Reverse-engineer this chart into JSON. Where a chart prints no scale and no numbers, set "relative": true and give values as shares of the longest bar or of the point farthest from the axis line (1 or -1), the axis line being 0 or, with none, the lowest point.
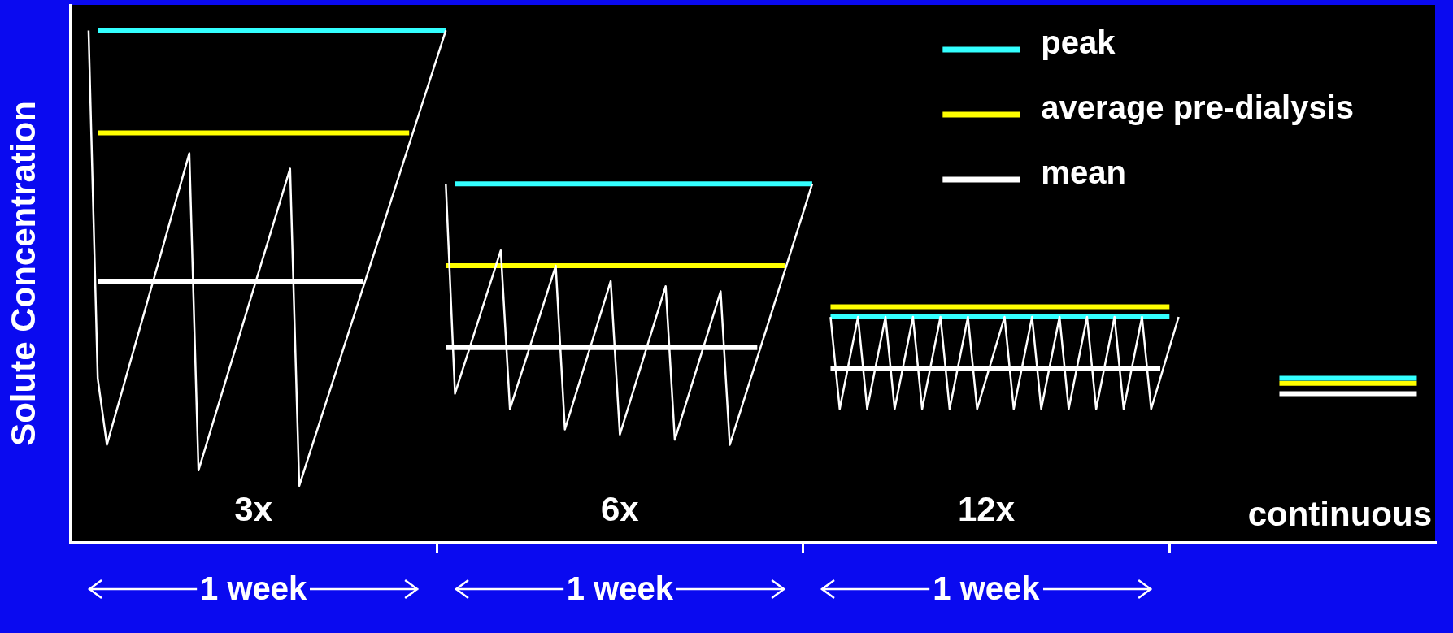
{
  "chart_data": {
    "type": "line",
    "relative": true,
    "ylabel": "Solute Concentration",
    "categories": [
      null,
      null,
      null,
      null,
      null,
      null,
      null,
      null,
      null,
      null,
      null,
      null,
      null,
      null,
      null,
      null,
      null,
      null,
      null,
      null,
      "1 week",
      null,
      null,
      null,
      null,
      null,
      null,
      null,
      null,
      null,
      null,
      null,
      null,
      null,
      null,
      null,
      null,
      null,
      null,
      null,
      null,
      null,
      null,
      null,
      null,
      null,
      null,
      null,
      null,
      null,
      null,
      null,
      null,
      null,
      null,
      null,
      null,
      null,
      null,
      null,
      "1 week",
      null,
      null,
      null,
      null,
      null,
      null,
      null,
      null,
      null,
      null,
      null,
      null,
      null,
      null,
      null,
      null,
      null,
      null,
      null,
      null,
      null,
      null,
      null,
      null,
      null,
      null,
      null,
      null,
      null,
      null,
      null,
      null,
      null,
      null,
      null,
      null,
      null,
      null,
      null,
      "1 week",
      null,
      null,
      null,
      null,
      null,
      null,
      null,
      null,
      null,
      null,
      null,
      null,
      null,
      null,
      null,
      null,
      null,
      null,
      null,
      null,
      null,
      null,
      null,
      null,
      null,
      null,
      null,
      null,
      null,
      null,
      null,
      null,
      null,
      null,
      null,
      null,
      null,
      null,
      null,
      null,
      null,
      null,
      null,
      null,
      null,
      null,
      null,
      null,
      null
    ],
    "annotations": [
      "3x",
      "6x",
      "12x",
      "continuous"
    ],
    "series": [
      {
        "color": "#ffffff",
        "values": [
          null,
          null,
          1.0,
          0.32,
          0.19,
          null,
          null,
          null,
          null,
          null,
          null,
          null,
          null,
          0.76,
          0.14,
          null,
          null,
          null,
          null,
          null,
          null,
          null,
          null,
          null,
          0.73,
          0.11,
          null,
          null,
          null,
          null,
          null,
          null,
          null,
          null,
          null,
          null,
          null,
          null,
          null,
          null,
          null,
          1.0,
          null,
          null,
          null,
          null,
          null,
          null,
          null,
          null,
          null,
          null,
          null,
          null,
          null,
          null,
          null,
          null,
          null,
          null,
          null,
          null,
          null,
          null,
          null,
          null,
          null,
          null,
          null,
          null,
          null,
          null,
          null,
          null,
          null,
          null,
          null,
          null,
          null,
          null,
          null,
          null,
          null,
          null,
          null,
          null,
          null,
          null,
          null,
          null,
          null,
          null,
          null,
          null,
          null,
          null,
          null,
          null,
          null,
          null,
          null,
          null,
          null,
          null,
          null,
          null,
          null,
          null,
          null,
          null,
          null,
          null,
          null,
          null,
          null,
          null,
          null,
          null,
          null,
          null,
          null,
          null,
          null,
          null,
          null,
          null,
          null,
          null,
          null,
          null,
          null,
          null,
          null,
          null,
          null,
          null,
          null,
          null,
          null,
          null,
          null,
          null,
          null,
          null,
          null,
          null,
          null,
          null,
          null,
          null
        ]
      },
      {
        "color": "#ffffff",
        "values": [
          null,
          null,
          null,
          null,
          null,
          null,
          null,
          null,
          null,
          null,
          null,
          null,
          null,
          null,
          null,
          null,
          null,
          null,
          null,
          null,
          null,
          null,
          null,
          null,
          null,
          null,
          null,
          null,
          null,
          null,
          null,
          null,
          null,
          null,
          null,
          null,
          null,
          null,
          null,
          null,
          null,
          0.7,
          0.29,
          null,
          null,
          null,
          null,
          0.57,
          0.26,
          null,
          null,
          null,
          null,
          0.54,
          0.22,
          null,
          null,
          null,
          null,
          0.51,
          0.21,
          null,
          null,
          null,
          null,
          0.5,
          0.2,
          null,
          null,
          null,
          null,
          0.49,
          0.19,
          null,
          null,
          null,
          null,
          null,
          null,
          null,
          null,
          0.7,
          null,
          null,
          null,
          null,
          null,
          null,
          null,
          null,
          null,
          null,
          null,
          null,
          null,
          null,
          null,
          null,
          null,
          null,
          null,
          null,
          null,
          null,
          null,
          null,
          null,
          null,
          null,
          null,
          null,
          null,
          null,
          null,
          null,
          null,
          null,
          null,
          null,
          null,
          null,
          null,
          null,
          null,
          null,
          null,
          null,
          null,
          null,
          null,
          null,
          null,
          null,
          null,
          null,
          null,
          null,
          null,
          null,
          null,
          null,
          null,
          null,
          null,
          null,
          null,
          null,
          null,
          null,
          null
        ]
      },
      {
        "color": "#ffffff",
        "values": [
          null,
          null,
          null,
          null,
          null,
          null,
          null,
          null,
          null,
          null,
          null,
          null,
          null,
          null,
          null,
          null,
          null,
          null,
          null,
          null,
          null,
          null,
          null,
          null,
          null,
          null,
          null,
          null,
          null,
          null,
          null,
          null,
          null,
          null,
          null,
          null,
          null,
          null,
          null,
          null,
          null,
          null,
          null,
          null,
          null,
          null,
          null,
          null,
          null,
          null,
          null,
          null,
          null,
          null,
          null,
          null,
          null,
          null,
          null,
          null,
          null,
          null,
          null,
          null,
          null,
          null,
          null,
          null,
          null,
          null,
          null,
          null,
          null,
          null,
          null,
          null,
          null,
          null,
          null,
          null,
          null,
          null,
          null,
          0.44,
          0.26,
          null,
          0.44,
          0.26,
          null,
          0.44,
          0.26,
          null,
          0.44,
          0.26,
          null,
          0.44,
          0.26,
          null,
          0.44,
          0.26,
          null,
          null,
          0.44,
          0.26,
          null,
          0.44,
          0.26,
          null,
          0.44,
          0.26,
          null,
          0.44,
          0.26,
          null,
          0.44,
          0.26,
          null,
          0.44,
          0.26,
          null,
          null,
          0.44,
          null,
          null,
          null,
          null,
          null,
          null,
          null,
          null,
          null,
          null,
          null,
          null,
          null,
          null,
          null,
          null,
          null,
          null,
          null,
          null,
          null,
          null,
          null,
          null,
          null,
          null,
          null,
          null
        ]
      },
      {
        "name": "peak",
        "color": "#33ffff",
        "values": [
          null,
          null,
          null,
          1.0,
          null,
          null,
          null,
          null,
          null,
          null,
          null,
          null,
          null,
          null,
          null,
          null,
          null,
          null,
          null,
          null,
          null,
          null,
          null,
          null,
          null,
          null,
          null,
          null,
          null,
          null,
          null,
          null,
          null,
          null,
          null,
          null,
          null,
          null,
          null,
          null,
          null,
          1.0,
          null,
          null,
          null,
          null,
          null,
          null,
          null,
          null,
          null,
          null,
          null,
          null,
          null,
          null,
          null,
          null,
          null,
          null,
          null,
          null,
          null,
          null,
          null,
          null,
          null,
          null,
          null,
          null,
          null,
          null,
          null,
          null,
          null,
          null,
          null,
          null,
          null,
          null,
          null,
          null,
          null,
          null,
          null,
          null,
          null,
          null,
          null,
          null,
          null,
          null,
          null,
          null,
          null,
          null,
          null,
          null,
          null,
          null,
          null,
          null,
          null,
          null,
          null,
          null,
          null,
          null,
          null,
          null,
          null,
          null,
          null,
          null,
          null,
          null,
          null,
          null,
          null,
          null,
          null,
          null,
          null,
          null,
          null,
          null,
          null,
          null,
          null,
          null,
          null,
          null,
          null,
          null,
          null,
          null,
          null,
          null,
          null,
          null,
          null,
          null,
          null,
          null,
          null,
          null,
          null,
          null,
          null,
          null
        ]
      },
      {
        "color": "#33ffff",
        "values": [
          null,
          null,
          null,
          null,
          null,
          null,
          null,
          null,
          null,
          null,
          null,
          null,
          null,
          null,
          null,
          null,
          null,
          null,
          null,
          null,
          null,
          null,
          null,
          null,
          null,
          null,
          null,
          null,
          null,
          null,
          null,
          null,
          null,
          null,
          null,
          null,
          null,
          null,
          null,
          null,
          null,
          null,
          0.7,
          null,
          null,
          null,
          null,
          null,
          null,
          null,
          null,
          null,
          null,
          null,
          null,
          null,
          null,
          null,
          null,
          null,
          null,
          null,
          null,
          null,
          null,
          null,
          null,
          null,
          null,
          null,
          null,
          null,
          null,
          null,
          null,
          null,
          null,
          null,
          null,
          null,
          null,
          0.7,
          null,
          null,
          null,
          null,
          null,
          null,
          null,
          null,
          null,
          null,
          null,
          null,
          null,
          null,
          null,
          null,
          null,
          null,
          null,
          null,
          null,
          null,
          null,
          null,
          null,
          null,
          null,
          null,
          null,
          null,
          null,
          null,
          null,
          null,
          null,
          null,
          null,
          null,
          null,
          null,
          null,
          null,
          null,
          null,
          null,
          null,
          null,
          null,
          null,
          null,
          null,
          null,
          null,
          null,
          null,
          null,
          null,
          null,
          null,
          null,
          null,
          null,
          null,
          null,
          null,
          null,
          null,
          null
        ]
      },
      {
        "color": "#33ffff",
        "values": [
          null,
          null,
          null,
          null,
          null,
          null,
          null,
          null,
          null,
          null,
          null,
          null,
          null,
          null,
          null,
          null,
          null,
          null,
          null,
          null,
          null,
          null,
          null,
          null,
          null,
          null,
          null,
          null,
          null,
          null,
          null,
          null,
          null,
          null,
          null,
          null,
          null,
          null,
          null,
          null,
          null,
          null,
          null,
          null,
          null,
          null,
          null,
          null,
          null,
          null,
          null,
          null,
          null,
          null,
          null,
          null,
          null,
          null,
          null,
          null,
          null,
          null,
          null,
          null,
          null,
          null,
          null,
          null,
          null,
          null,
          null,
          null,
          null,
          null,
          null,
          null,
          null,
          null,
          null,
          null,
          null,
          null,
          null,
          0.44,
          null,
          null,
          null,
          null,
          null,
          null,
          null,
          null,
          null,
          null,
          null,
          null,
          null,
          null,
          null,
          null,
          null,
          null,
          null,
          null,
          null,
          null,
          null,
          null,
          null,
          null,
          null,
          null,
          null,
          null,
          null,
          null,
          null,
          null,
          null,
          null,
          0.44,
          null,
          null,
          null,
          null,
          null,
          null,
          null,
          null,
          null,
          null,
          null,
          null,
          null,
          null,
          null,
          null,
          null,
          null,
          null,
          null,
          null,
          null,
          null,
          null,
          null,
          null,
          null,
          null,
          null
        ]
      },
      {
        "color": "#33ffff",
        "values": [
          null,
          null,
          null,
          null,
          null,
          null,
          null,
          null,
          null,
          null,
          null,
          null,
          null,
          null,
          null,
          null,
          null,
          null,
          null,
          null,
          null,
          null,
          null,
          null,
          null,
          null,
          null,
          null,
          null,
          null,
          null,
          null,
          null,
          null,
          null,
          null,
          null,
          null,
          null,
          null,
          null,
          null,
          null,
          null,
          null,
          null,
          null,
          null,
          null,
          null,
          null,
          null,
          null,
          null,
          null,
          null,
          null,
          null,
          null,
          null,
          null,
          null,
          null,
          null,
          null,
          null,
          null,
          null,
          null,
          null,
          null,
          null,
          null,
          null,
          null,
          null,
          null,
          null,
          null,
          null,
          null,
          null,
          null,
          null,
          null,
          null,
          null,
          null,
          null,
          null,
          null,
          null,
          null,
          null,
          null,
          null,
          null,
          null,
          null,
          null,
          null,
          null,
          null,
          null,
          null,
          null,
          null,
          null,
          null,
          null,
          null,
          null,
          null,
          null,
          null,
          null,
          null,
          null,
          null,
          null,
          null,
          null,
          null,
          null,
          null,
          null,
          null,
          null,
          null,
          null,
          null,
          null,
          0.32,
          null,
          null,
          null,
          null,
          null,
          null,
          null,
          null,
          null,
          null,
          null,
          null,
          null,
          null,
          0.32,
          null,
          null
        ]
      },
      {
        "name": "average pre-dialysis",
        "color": "#ffff00",
        "values": [
          null,
          null,
          null,
          0.8,
          null,
          null,
          null,
          null,
          null,
          null,
          null,
          null,
          null,
          null,
          null,
          null,
          null,
          null,
          null,
          null,
          null,
          null,
          null,
          null,
          null,
          null,
          null,
          null,
          null,
          null,
          null,
          null,
          null,
          null,
          null,
          null,
          null,
          0.8,
          null,
          null,
          null,
          null,
          null,
          null,
          null,
          null,
          null,
          null,
          null,
          null,
          null,
          null,
          null,
          null,
          null,
          null,
          null,
          null,
          null,
          null,
          null,
          null,
          null,
          null,
          null,
          null,
          null,
          null,
          null,
          null,
          null,
          null,
          null,
          null,
          null,
          null,
          null,
          null,
          null,
          null,
          null,
          null,
          null,
          null,
          null,
          null,
          null,
          null,
          null,
          null,
          null,
          null,
          null,
          null,
          null,
          null,
          null,
          null,
          null,
          null,
          null,
          null,
          null,
          null,
          null,
          null,
          null,
          null,
          null,
          null,
          null,
          null,
          null,
          null,
          null,
          null,
          null,
          null,
          null,
          null,
          null,
          null,
          null,
          null,
          null,
          null,
          null,
          null,
          null,
          null,
          null,
          null,
          null,
          null,
          null,
          null,
          null,
          null,
          null,
          null,
          null,
          null,
          null,
          null,
          null,
          null,
          null,
          null,
          null,
          null
        ]
      },
      {
        "color": "#ffff00",
        "values": [
          null,
          null,
          null,
          null,
          null,
          null,
          null,
          null,
          null,
          null,
          null,
          null,
          null,
          null,
          null,
          null,
          null,
          null,
          null,
          null,
          null,
          null,
          null,
          null,
          null,
          null,
          null,
          null,
          null,
          null,
          null,
          null,
          null,
          null,
          null,
          null,
          null,
          null,
          null,
          null,
          null,
          0.54,
          null,
          null,
          null,
          null,
          null,
          null,
          null,
          null,
          null,
          null,
          null,
          null,
          null,
          null,
          null,
          null,
          null,
          null,
          null,
          null,
          null,
          null,
          null,
          null,
          null,
          null,
          null,
          null,
          null,
          null,
          null,
          null,
          null,
          null,
          null,
          null,
          0.54,
          null,
          null,
          null,
          null,
          null,
          null,
          null,
          null,
          null,
          null,
          null,
          null,
          null,
          null,
          null,
          null,
          null,
          null,
          null,
          null,
          null,
          null,
          null,
          null,
          null,
          null,
          null,
          null,
          null,
          null,
          null,
          null,
          null,
          null,
          null,
          null,
          null,
          null,
          null,
          null,
          null,
          null,
          null,
          null,
          null,
          null,
          null,
          null,
          null,
          null,
          null,
          null,
          null,
          null,
          null,
          null,
          null,
          null,
          null,
          null,
          null,
          null,
          null,
          null,
          null,
          null,
          null,
          null,
          null,
          null,
          null
        ]
      },
      {
        "color": "#ffff00",
        "values": [
          null,
          null,
          null,
          null,
          null,
          null,
          null,
          null,
          null,
          null,
          null,
          null,
          null,
          null,
          null,
          null,
          null,
          null,
          null,
          null,
          null,
          null,
          null,
          null,
          null,
          null,
          null,
          null,
          null,
          null,
          null,
          null,
          null,
          null,
          null,
          null,
          null,
          null,
          null,
          null,
          null,
          null,
          null,
          null,
          null,
          null,
          null,
          null,
          null,
          null,
          null,
          null,
          null,
          null,
          null,
          null,
          null,
          null,
          null,
          null,
          null,
          null,
          null,
          null,
          null,
          null,
          null,
          null,
          null,
          null,
          null,
          null,
          null,
          null,
          null,
          null,
          null,
          null,
          null,
          null,
          null,
          null,
          null,
          0.46,
          null,
          null,
          null,
          null,
          null,
          null,
          null,
          null,
          null,
          null,
          null,
          null,
          null,
          null,
          null,
          null,
          null,
          null,
          null,
          null,
          null,
          null,
          null,
          null,
          null,
          null,
          null,
          null,
          null,
          null,
          null,
          null,
          null,
          null,
          null,
          null,
          0.46,
          null,
          null,
          null,
          null,
          null,
          null,
          null,
          null,
          null,
          null,
          null,
          null,
          null,
          null,
          null,
          null,
          null,
          null,
          null,
          null,
          null,
          null,
          null,
          null,
          null,
          null,
          null,
          null,
          null
        ]
      },
      {
        "color": "#ffff00",
        "values": [
          null,
          null,
          null,
          null,
          null,
          null,
          null,
          null,
          null,
          null,
          null,
          null,
          null,
          null,
          null,
          null,
          null,
          null,
          null,
          null,
          null,
          null,
          null,
          null,
          null,
          null,
          null,
          null,
          null,
          null,
          null,
          null,
          null,
          null,
          null,
          null,
          null,
          null,
          null,
          null,
          null,
          null,
          null,
          null,
          null,
          null,
          null,
          null,
          null,
          null,
          null,
          null,
          null,
          null,
          null,
          null,
          null,
          null,
          null,
          null,
          null,
          null,
          null,
          null,
          null,
          null,
          null,
          null,
          null,
          null,
          null,
          null,
          null,
          null,
          null,
          null,
          null,
          null,
          null,
          null,
          null,
          null,
          null,
          null,
          null,
          null,
          null,
          null,
          null,
          null,
          null,
          null,
          null,
          null,
          null,
          null,
          null,
          null,
          null,
          null,
          null,
          null,
          null,
          null,
          null,
          null,
          null,
          null,
          null,
          null,
          null,
          null,
          null,
          null,
          null,
          null,
          null,
          null,
          null,
          null,
          null,
          null,
          null,
          null,
          null,
          null,
          null,
          null,
          null,
          null,
          null,
          null,
          0.31,
          null,
          null,
          null,
          null,
          null,
          null,
          null,
          null,
          null,
          null,
          null,
          null,
          null,
          null,
          0.31,
          null,
          null
        ]
      },
      {
        "name": "mean",
        "color": "#ffffff",
        "values": [
          null,
          null,
          null,
          0.51,
          null,
          null,
          null,
          null,
          null,
          null,
          null,
          null,
          null,
          null,
          null,
          null,
          null,
          null,
          null,
          null,
          null,
          null,
          null,
          null,
          null,
          null,
          null,
          null,
          null,
          null,
          null,
          null,
          0.51,
          null,
          null,
          null,
          null,
          null,
          null,
          null,
          null,
          null,
          null,
          null,
          null,
          null,
          null,
          null,
          null,
          null,
          null,
          null,
          null,
          null,
          null,
          null,
          null,
          null,
          null,
          null,
          null,
          null,
          null,
          null,
          null,
          null,
          null,
          null,
          null,
          null,
          null,
          null,
          null,
          null,
          null,
          null,
          null,
          null,
          null,
          null,
          null,
          null,
          null,
          null,
          null,
          null,
          null,
          null,
          null,
          null,
          null,
          null,
          null,
          null,
          null,
          null,
          null,
          null,
          null,
          null,
          null,
          null,
          null,
          null,
          null,
          null,
          null,
          null,
          null,
          null,
          null,
          null,
          null,
          null,
          null,
          null,
          null,
          null,
          null,
          null,
          null,
          null,
          null,
          null,
          null,
          null,
          null,
          null,
          null,
          null,
          null,
          null,
          null,
          null,
          null,
          null,
          null,
          null,
          null,
          null,
          null,
          null,
          null,
          null,
          null,
          null,
          null,
          null,
          null,
          null
        ]
      },
      {
        "color": "#ffffff",
        "values": [
          null,
          null,
          null,
          null,
          null,
          null,
          null,
          null,
          null,
          null,
          null,
          null,
          null,
          null,
          null,
          null,
          null,
          null,
          null,
          null,
          null,
          null,
          null,
          null,
          null,
          null,
          null,
          null,
          null,
          null,
          null,
          null,
          null,
          null,
          null,
          null,
          null,
          null,
          null,
          null,
          null,
          0.38,
          null,
          null,
          null,
          null,
          null,
          null,
          null,
          null,
          null,
          null,
          null,
          null,
          null,
          null,
          null,
          null,
          null,
          null,
          null,
          null,
          null,
          null,
          null,
          null,
          null,
          null,
          null,
          null,
          null,
          null,
          null,
          null,
          null,
          0.38,
          null,
          null,
          null,
          null,
          null,
          null,
          null,
          null,
          null,
          null,
          null,
          null,
          null,
          null,
          null,
          null,
          null,
          null,
          null,
          null,
          null,
          null,
          null,
          null,
          null,
          null,
          null,
          null,
          null,
          null,
          null,
          null,
          null,
          null,
          null,
          null,
          null,
          null,
          null,
          null,
          null,
          null,
          null,
          null,
          null,
          null,
          null,
          null,
          null,
          null,
          null,
          null,
          null,
          null,
          null,
          null,
          null,
          null,
          null,
          null,
          null,
          null,
          null,
          null,
          null,
          null,
          null,
          null,
          null,
          null,
          null,
          null,
          null,
          null
        ]
      },
      {
        "color": "#ffffff",
        "values": [
          null,
          null,
          null,
          null,
          null,
          null,
          null,
          null,
          null,
          null,
          null,
          null,
          null,
          null,
          null,
          null,
          null,
          null,
          null,
          null,
          null,
          null,
          null,
          null,
          null,
          null,
          null,
          null,
          null,
          null,
          null,
          null,
          null,
          null,
          null,
          null,
          null,
          null,
          null,
          null,
          null,
          null,
          null,
          null,
          null,
          null,
          null,
          null,
          null,
          null,
          null,
          null,
          null,
          null,
          null,
          null,
          null,
          null,
          null,
          null,
          null,
          null,
          null,
          null,
          null,
          null,
          null,
          null,
          null,
          null,
          null,
          null,
          null,
          null,
          null,
          null,
          null,
          null,
          null,
          null,
          null,
          null,
          null,
          0.34,
          null,
          null,
          null,
          null,
          null,
          null,
          null,
          null,
          null,
          null,
          null,
          null,
          null,
          null,
          null,
          null,
          null,
          null,
          null,
          null,
          null,
          null,
          null,
          null,
          null,
          null,
          null,
          null,
          null,
          null,
          null,
          null,
          null,
          null,
          null,
          0.34,
          null,
          null,
          null,
          null,
          null,
          null,
          null,
          null,
          null,
          null,
          null,
          null,
          null,
          null,
          null,
          null,
          null,
          null,
          null,
          null,
          null,
          null,
          null,
          null,
          null,
          null,
          null,
          null,
          null,
          null
        ]
      },
      {
        "color": "#ffffff",
        "values": [
          null,
          null,
          null,
          null,
          null,
          null,
          null,
          null,
          null,
          null,
          null,
          null,
          null,
          null,
          null,
          null,
          null,
          null,
          null,
          null,
          null,
          null,
          null,
          null,
          null,
          null,
          null,
          null,
          null,
          null,
          null,
          null,
          null,
          null,
          null,
          null,
          null,
          null,
          null,
          null,
          null,
          null,
          null,
          null,
          null,
          null,
          null,
          null,
          null,
          null,
          null,
          null,
          null,
          null,
          null,
          null,
          null,
          null,
          null,
          null,
          null,
          null,
          null,
          null,
          null,
          null,
          null,
          null,
          null,
          null,
          null,
          null,
          null,
          null,
          null,
          null,
          null,
          null,
          null,
          null,
          null,
          null,
          null,
          null,
          null,
          null,
          null,
          null,
          null,
          null,
          null,
          null,
          null,
          null,
          null,
          null,
          null,
          null,
          null,
          null,
          null,
          null,
          null,
          null,
          null,
          null,
          null,
          null,
          null,
          null,
          null,
          null,
          null,
          null,
          null,
          null,
          null,
          null,
          null,
          null,
          null,
          null,
          null,
          null,
          null,
          null,
          null,
          null,
          null,
          null,
          null,
          null,
          0.29,
          null,
          null,
          null,
          null,
          null,
          null,
          null,
          null,
          null,
          null,
          null,
          null,
          null,
          null,
          0.29,
          null,
          null
        ]
      }
    ],
    "legend": "top right",
    "grid": false,
    "marker": "none",
    "line_style": "solid"
  }
}
